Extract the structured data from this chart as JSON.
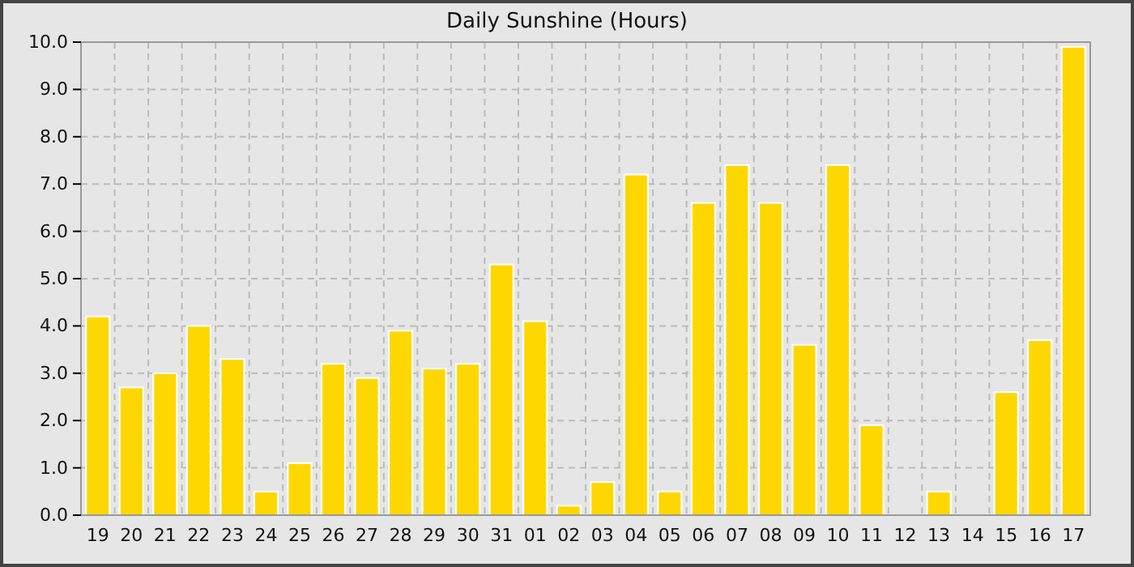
{
  "chart_data": {
    "type": "bar",
    "title": "Daily Sunshine (Hours)",
    "categories": [
      "19",
      "20",
      "21",
      "22",
      "23",
      "24",
      "25",
      "26",
      "27",
      "28",
      "29",
      "30",
      "31",
      "01",
      "02",
      "03",
      "04",
      "05",
      "06",
      "07",
      "08",
      "09",
      "10",
      "11",
      "12",
      "13",
      "14",
      "15",
      "16",
      "17"
    ],
    "values": [
      4.2,
      2.7,
      3.0,
      4.0,
      3.3,
      0.5,
      1.1,
      3.2,
      2.9,
      3.9,
      3.1,
      3.2,
      5.3,
      4.1,
      0.2,
      0.7,
      7.2,
      0.5,
      6.6,
      7.4,
      6.6,
      3.6,
      7.4,
      1.9,
      0,
      0.5,
      0,
      2.6,
      3.7,
      9.9
    ],
    "color": "#ffd700",
    "ylim": [
      0,
      10
    ],
    "yticks": [
      {
        "value": 0,
        "label": "0.0"
      },
      {
        "value": 1,
        "label": "1.0"
      },
      {
        "value": 2,
        "label": "2.0"
      },
      {
        "value": 3,
        "label": "3.0"
      },
      {
        "value": 4,
        "label": "4.0"
      },
      {
        "value": 5,
        "label": "5.0"
      },
      {
        "value": 6,
        "label": "6.0"
      },
      {
        "value": 7,
        "label": "7.0"
      },
      {
        "value": 8,
        "label": "8.0"
      },
      {
        "value": 9,
        "label": "9.0"
      },
      {
        "value": 10,
        "label": "10.0"
      }
    ],
    "grid": true
  }
}
